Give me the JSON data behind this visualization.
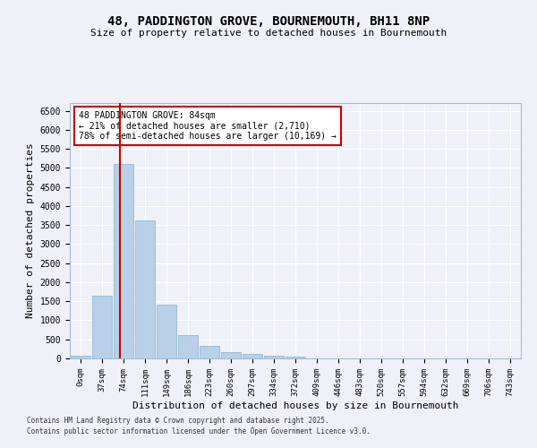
{
  "title_line1": "48, PADDINGTON GROVE, BOURNEMOUTH, BH11 8NP",
  "title_line2": "Size of property relative to detached houses in Bournemouth",
  "xlabel": "Distribution of detached houses by size in Bournemouth",
  "ylabel": "Number of detached properties",
  "bar_color": "#b8d0e8",
  "bar_edge_color": "#8ab0cc",
  "annotation_line_color": "#cc0000",
  "annotation_box_color": "#cc0000",
  "background_color": "#eef2f8",
  "grid_color": "#ffffff",
  "categories": [
    "0sqm",
    "37sqm",
    "74sqm",
    "111sqm",
    "149sqm",
    "186sqm",
    "223sqm",
    "260sqm",
    "297sqm",
    "334sqm",
    "372sqm",
    "409sqm",
    "446sqm",
    "483sqm",
    "520sqm",
    "557sqm",
    "594sqm",
    "632sqm",
    "669sqm",
    "706sqm",
    "743sqm"
  ],
  "values": [
    75,
    1650,
    5100,
    3620,
    1420,
    610,
    320,
    155,
    110,
    75,
    40,
    0,
    0,
    0,
    0,
    0,
    0,
    0,
    0,
    0,
    0
  ],
  "ylim": [
    0,
    6700
  ],
  "yticks": [
    0,
    500,
    1000,
    1500,
    2000,
    2500,
    3000,
    3500,
    4000,
    4500,
    5000,
    5500,
    6000,
    6500
  ],
  "annotation_line1": "48 PADDINGTON GROVE: 84sqm",
  "annotation_line2": "← 21% of detached houses are smaller (2,710)",
  "annotation_line3": "78% of semi-detached houses are larger (10,169) →",
  "vline_x_index": 1.85,
  "footer_line1": "Contains HM Land Registry data © Crown copyright and database right 2025.",
  "footer_line2": "Contains public sector information licensed under the Open Government Licence v3.0."
}
